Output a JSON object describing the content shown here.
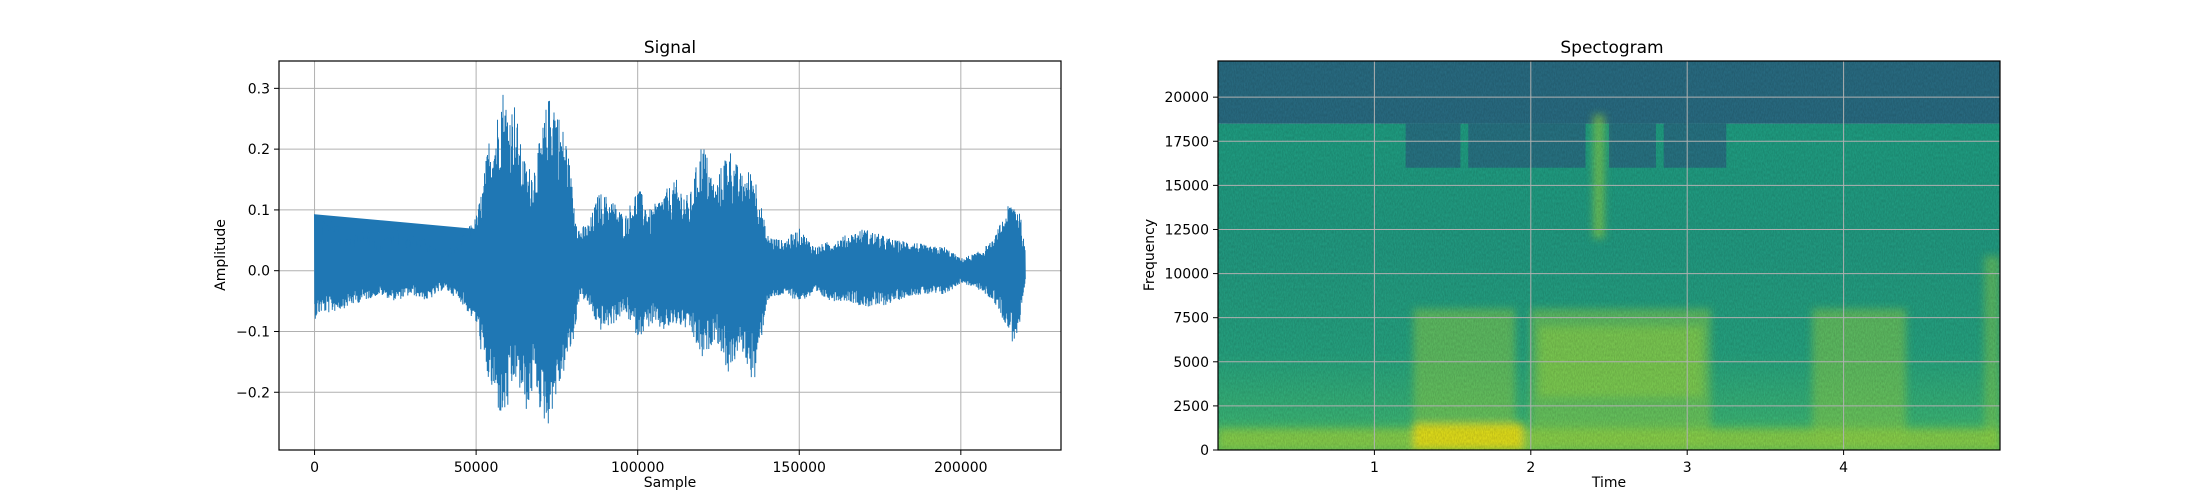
{
  "chart_data": [
    {
      "type": "line",
      "title": "Signal",
      "xlabel": "Sample",
      "ylabel": "Amplitude",
      "xlim": [
        -11000,
        231000
      ],
      "ylim": [
        -0.295,
        0.345
      ],
      "xticks": [
        0,
        50000,
        100000,
        150000,
        200000
      ],
      "xtick_labels": [
        "0",
        "50000",
        "100000",
        "150000",
        "200000"
      ],
      "yticks": [
        -0.2,
        -0.1,
        0.0,
        0.1,
        0.2,
        0.3
      ],
      "ytick_labels": [
        "−0.2",
        "−0.1",
        "0.0",
        "0.1",
        "0.2",
        "0.3"
      ],
      "grid": true,
      "color": "#1f77b4",
      "series": [
        {
          "envelope_x": [
            0,
            2000,
            5000,
            10000,
            15000,
            20000,
            25000,
            30000,
            35000,
            40000,
            45000,
            50000,
            52000,
            54000,
            56000,
            58000,
            60000,
            62000,
            64000,
            66000,
            68000,
            70000,
            72000,
            74000,
            76000,
            78000,
            80000,
            82000,
            85000,
            88000,
            92000,
            96000,
            100000,
            104000,
            108000,
            112000,
            116000,
            120000,
            124000,
            128000,
            132000,
            136000,
            140000,
            145000,
            150000,
            155000,
            160000,
            165000,
            170000,
            175000,
            180000,
            185000,
            190000,
            195000,
            200000,
            205000,
            210000,
            214000,
            216000,
            218000,
            220000
          ],
          "envelope_upper": [
            0.11,
            0.08,
            0.09,
            0.06,
            0.07,
            0.05,
            0.07,
            0.06,
            0.05,
            0.03,
            0.05,
            0.09,
            0.14,
            0.22,
            0.24,
            0.31,
            0.27,
            0.28,
            0.2,
            0.17,
            0.18,
            0.22,
            0.28,
            0.3,
            0.25,
            0.22,
            0.13,
            0.07,
            0.08,
            0.13,
            0.12,
            0.09,
            0.14,
            0.1,
            0.13,
            0.15,
            0.12,
            0.22,
            0.14,
            0.21,
            0.16,
            0.17,
            0.06,
            0.05,
            0.07,
            0.04,
            0.05,
            0.06,
            0.07,
            0.06,
            0.05,
            0.05,
            0.04,
            0.04,
            0.02,
            0.03,
            0.05,
            0.1,
            0.12,
            0.11,
            0.03
          ],
          "envelope_lower": [
            -0.08,
            -0.07,
            -0.07,
            -0.06,
            -0.05,
            -0.04,
            -0.05,
            -0.04,
            -0.05,
            -0.03,
            -0.05,
            -0.09,
            -0.15,
            -0.19,
            -0.22,
            -0.25,
            -0.23,
            -0.18,
            -0.21,
            -0.24,
            -0.18,
            -0.24,
            -0.26,
            -0.22,
            -0.19,
            -0.15,
            -0.12,
            -0.04,
            -0.06,
            -0.1,
            -0.09,
            -0.07,
            -0.11,
            -0.09,
            -0.1,
            -0.09,
            -0.1,
            -0.15,
            -0.11,
            -0.17,
            -0.13,
            -0.19,
            -0.05,
            -0.04,
            -0.05,
            -0.04,
            -0.05,
            -0.05,
            -0.06,
            -0.06,
            -0.05,
            -0.04,
            -0.04,
            -0.04,
            -0.02,
            -0.03,
            -0.05,
            -0.09,
            -0.12,
            -0.1,
            -0.02
          ]
        }
      ]
    },
    {
      "type": "heatmap",
      "title": "Spectogram",
      "xlabel": "Time",
      "ylabel": "Frequency",
      "xlim": [
        0,
        5.0
      ],
      "ylim": [
        0,
        22050
      ],
      "xticks": [
        1,
        2,
        3,
        4
      ],
      "xtick_labels": [
        "1",
        "2",
        "3",
        "4"
      ],
      "yticks": [
        0,
        2500,
        5000,
        7500,
        10000,
        12500,
        15000,
        17500,
        20000
      ],
      "ytick_labels": [
        "0",
        "2500",
        "5000",
        "7500",
        "10000",
        "12500",
        "15000",
        "17500",
        "20000"
      ],
      "grid": true,
      "colormap": "viridis",
      "cutoff_frequency": 18500,
      "notch_band": [
        16000,
        18500
      ],
      "speech_segments": [
        [
          1.25,
          1.9
        ],
        [
          2.0,
          3.15
        ],
        [
          3.8,
          4.4
        ]
      ],
      "colors": {
        "dark": "#2a6f86",
        "mid": "#25a483",
        "bright": "#8fd54a",
        "peak": "#ece51b"
      }
    }
  ]
}
